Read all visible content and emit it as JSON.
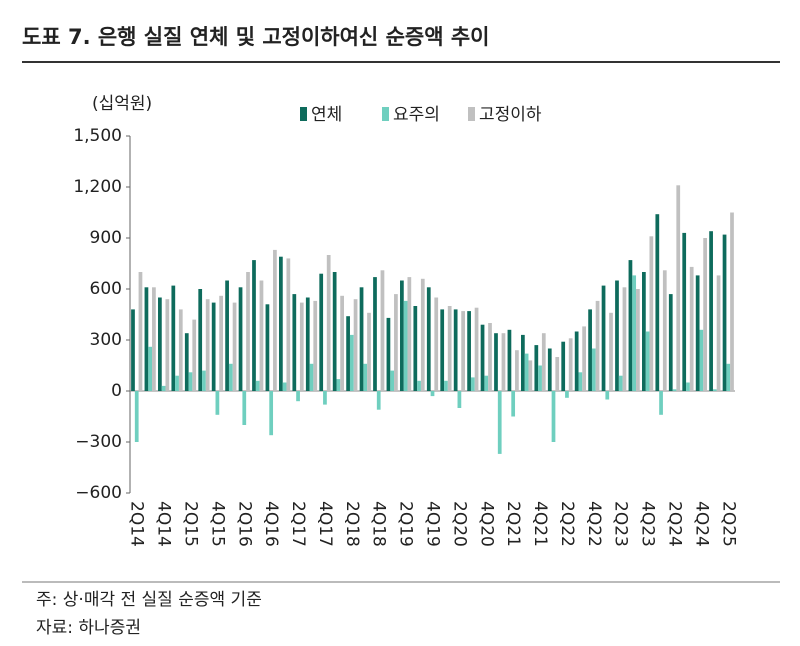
{
  "chart_data": {
    "type": "bar",
    "title": "도표 7. 은행 실질 연체 및 고정이하여신 순증액 추이",
    "unit_label": "(십억원)",
    "notes": [
      "주: 상·매각 전 실질 순증액 기준",
      "자료: 하나증권"
    ],
    "categories": [
      "2Q14",
      null,
      "4Q14",
      null,
      "2Q15",
      null,
      "4Q15",
      null,
      "2Q16",
      null,
      "4Q16",
      null,
      "2Q17",
      null,
      "4Q17",
      null,
      "2Q18",
      null,
      "4Q18",
      null,
      "2Q19",
      null,
      "4Q19",
      null,
      "2Q20",
      null,
      "4Q20",
      null,
      "2Q21",
      null,
      "4Q21",
      null,
      "2Q22",
      null,
      "4Q22",
      null,
      "2Q23",
      null,
      "4Q23",
      null,
      "2Q24",
      null,
      "4Q24",
      null,
      "2Q25"
    ],
    "series": [
      {
        "name": "연체",
        "color": "#0e6b5c",
        "values": [
          480,
          610,
          550,
          620,
          340,
          600,
          520,
          650,
          610,
          770,
          510,
          790,
          570,
          550,
          690,
          700,
          440,
          610,
          670,
          430,
          650,
          500,
          610,
          480,
          480,
          470,
          390,
          340,
          360,
          330,
          270,
          250,
          290,
          350,
          480,
          620,
          650,
          770,
          700,
          1040,
          570,
          930,
          680,
          940,
          920
        ]
      },
      {
        "name": "요주의",
        "color": "#6fcfbf",
        "values": [
          -300,
          260,
          30,
          90,
          110,
          120,
          -140,
          160,
          -200,
          60,
          -260,
          50,
          -60,
          160,
          -80,
          70,
          330,
          160,
          -110,
          120,
          530,
          60,
          -30,
          60,
          -100,
          80,
          90,
          -370,
          -150,
          220,
          150,
          -300,
          -40,
          110,
          250,
          -50,
          90,
          680,
          350,
          -140,
          10,
          50,
          360,
          10,
          160
        ]
      },
      {
        "name": "고정이하",
        "color": "#c0c0c0",
        "values": [
          700,
          610,
          540,
          480,
          420,
          540,
          560,
          520,
          700,
          650,
          830,
          780,
          520,
          530,
          800,
          560,
          540,
          460,
          710,
          570,
          670,
          660,
          550,
          500,
          470,
          490,
          400,
          340,
          240,
          180,
          340,
          200,
          310,
          380,
          530,
          460,
          610,
          600,
          910,
          710,
          1210,
          730,
          900,
          680,
          1050
        ]
      }
    ],
    "ylim": [
      -600,
      1500
    ],
    "yticks": [
      {
        "value": -600,
        "label": "−600"
      },
      {
        "value": -300,
        "label": "−300"
      },
      0,
      300,
      600,
      900,
      {
        "value": 1200,
        "label": "1,200"
      },
      {
        "value": 1500,
        "label": "1,500"
      }
    ]
  }
}
